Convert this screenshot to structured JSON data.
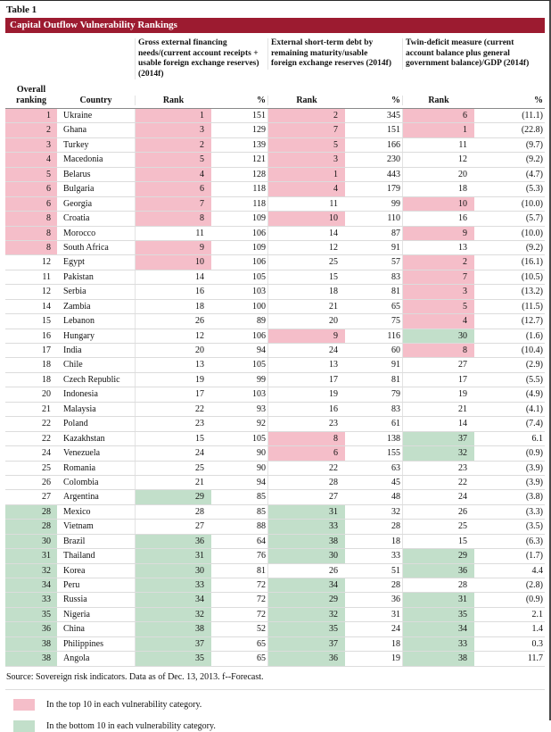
{
  "page": {
    "table_label": "Table 1",
    "title": "Capital Outflow Vulnerability Rankings",
    "source": "Source: Sovereign risk indicators. Data as of Dec. 13, 2013. f--Forecast.",
    "legend": [
      {
        "color": "#f5bec9",
        "label": "In the top 10 in each vulnerability category."
      },
      {
        "color": "#c2dfca",
        "label": "In the bottom 10 in each vulnerability category."
      }
    ]
  },
  "theme": {
    "header_red": "#9c1b30",
    "top10_pink": "#f5bec9",
    "bottom10_green": "#c2dfca"
  },
  "table": {
    "groups": [
      "Gross external financing needs/(current account receipts + usable foreign exchange reserves) (2014f)",
      "External short-term debt by remaining maturity/usable foreign exchange reserves (2014f)",
      "Twin-deficit measure (current account balance plus general government balance)/GDP (2014f)"
    ],
    "columns": {
      "overall": "Overall ranking",
      "country": "Country",
      "rank": "Rank",
      "pct": "%"
    },
    "rows": [
      {
        "overall": "1",
        "overall_hl": "pink",
        "country": "Ukraine",
        "g1_rank": "1",
        "g1_rank_hl": "pink",
        "g1_pct": "151",
        "g2_rank": "2",
        "g2_rank_hl": "pink",
        "g2_pct": "345",
        "g3_rank": "6",
        "g3_rank_hl": "pink",
        "g3_pct": "(11.1)"
      },
      {
        "overall": "2",
        "overall_hl": "pink",
        "country": "Ghana",
        "g1_rank": "3",
        "g1_rank_hl": "pink",
        "g1_pct": "129",
        "g2_rank": "7",
        "g2_rank_hl": "pink",
        "g2_pct": "151",
        "g3_rank": "1",
        "g3_rank_hl": "pink",
        "g3_pct": "(22.8)"
      },
      {
        "overall": "3",
        "overall_hl": "pink",
        "country": "Turkey",
        "g1_rank": "2",
        "g1_rank_hl": "pink",
        "g1_pct": "139",
        "g2_rank": "5",
        "g2_rank_hl": "pink",
        "g2_pct": "166",
        "g3_rank": "11",
        "g3_pct": "(9.7)"
      },
      {
        "overall": "4",
        "overall_hl": "pink",
        "country": "Macedonia",
        "g1_rank": "5",
        "g1_rank_hl": "pink",
        "g1_pct": "121",
        "g2_rank": "3",
        "g2_rank_hl": "pink",
        "g2_pct": "230",
        "g3_rank": "12",
        "g3_pct": "(9.2)"
      },
      {
        "overall": "5",
        "overall_hl": "pink",
        "country": "Belarus",
        "g1_rank": "4",
        "g1_rank_hl": "pink",
        "g1_pct": "128",
        "g2_rank": "1",
        "g2_rank_hl": "pink",
        "g2_pct": "443",
        "g3_rank": "20",
        "g3_pct": "(4.7)"
      },
      {
        "overall": "6",
        "overall_hl": "pink",
        "country": "Bulgaria",
        "g1_rank": "6",
        "g1_rank_hl": "pink",
        "g1_pct": "118",
        "g2_rank": "4",
        "g2_rank_hl": "pink",
        "g2_pct": "179",
        "g3_rank": "18",
        "g3_pct": "(5.3)"
      },
      {
        "overall": "6",
        "overall_hl": "pink",
        "country": "Georgia",
        "g1_rank": "7",
        "g1_rank_hl": "pink",
        "g1_pct": "118",
        "g2_rank": "11",
        "g2_pct": "99",
        "g3_rank": "10",
        "g3_rank_hl": "pink",
        "g3_pct": "(10.0)"
      },
      {
        "overall": "8",
        "overall_hl": "pink",
        "country": "Croatia",
        "g1_rank": "8",
        "g1_rank_hl": "pink",
        "g1_pct": "109",
        "g2_rank": "10",
        "g2_rank_hl": "pink",
        "g2_pct": "110",
        "g3_rank": "16",
        "g3_pct": "(5.7)"
      },
      {
        "overall": "8",
        "overall_hl": "pink",
        "country": "Morocco",
        "g1_rank": "11",
        "g1_pct": "106",
        "g2_rank": "14",
        "g2_pct": "87",
        "g3_rank": "9",
        "g3_rank_hl": "pink",
        "g3_pct": "(10.0)"
      },
      {
        "overall": "8",
        "overall_hl": "pink",
        "country": "South Africa",
        "g1_rank": "9",
        "g1_rank_hl": "pink",
        "g1_pct": "109",
        "g2_rank": "12",
        "g2_pct": "91",
        "g3_rank": "13",
        "g3_pct": "(9.2)"
      },
      {
        "overall": "12",
        "country": "Egypt",
        "g1_rank": "10",
        "g1_rank_hl": "pink",
        "g1_pct": "106",
        "g2_rank": "25",
        "g2_pct": "57",
        "g3_rank": "2",
        "g3_rank_hl": "pink",
        "g3_pct": "(16.1)"
      },
      {
        "overall": "11",
        "country": "Pakistan",
        "g1_rank": "14",
        "g1_pct": "105",
        "g2_rank": "15",
        "g2_pct": "83",
        "g3_rank": "7",
        "g3_rank_hl": "pink",
        "g3_pct": "(10.5)"
      },
      {
        "overall": "12",
        "country": "Serbia",
        "g1_rank": "16",
        "g1_pct": "103",
        "g2_rank": "18",
        "g2_pct": "81",
        "g3_rank": "3",
        "g3_rank_hl": "pink",
        "g3_pct": "(13.2)"
      },
      {
        "overall": "14",
        "country": "Zambia",
        "g1_rank": "18",
        "g1_pct": "100",
        "g2_rank": "21",
        "g2_pct": "65",
        "g3_rank": "5",
        "g3_rank_hl": "pink",
        "g3_pct": "(11.5)"
      },
      {
        "overall": "15",
        "country": "Lebanon",
        "g1_rank": "26",
        "g1_pct": "89",
        "g2_rank": "20",
        "g2_pct": "75",
        "g3_rank": "4",
        "g3_rank_hl": "pink",
        "g3_pct": "(12.7)"
      },
      {
        "overall": "16",
        "country": "Hungary",
        "g1_rank": "12",
        "g1_pct": "106",
        "g2_rank": "9",
        "g2_rank_hl": "pink",
        "g2_pct": "116",
        "g3_rank": "30",
        "g3_rank_hl": "green",
        "g3_pct": "(1.6)"
      },
      {
        "overall": "17",
        "country": "India",
        "g1_rank": "20",
        "g1_pct": "94",
        "g2_rank": "24",
        "g2_pct": "60",
        "g3_rank": "8",
        "g3_rank_hl": "pink",
        "g3_pct": "(10.4)"
      },
      {
        "overall": "18",
        "country": "Chile",
        "g1_rank": "13",
        "g1_pct": "105",
        "g2_rank": "13",
        "g2_pct": "91",
        "g3_rank": "27",
        "g3_pct": "(2.9)"
      },
      {
        "overall": "18",
        "country": "Czech Republic",
        "g1_rank": "19",
        "g1_pct": "99",
        "g2_rank": "17",
        "g2_pct": "81",
        "g3_rank": "17",
        "g3_pct": "(5.5)"
      },
      {
        "overall": "20",
        "country": "Indonesia",
        "g1_rank": "17",
        "g1_pct": "103",
        "g2_rank": "19",
        "g2_pct": "79",
        "g3_rank": "19",
        "g3_pct": "(4.9)"
      },
      {
        "overall": "21",
        "country": "Malaysia",
        "g1_rank": "22",
        "g1_pct": "93",
        "g2_rank": "16",
        "g2_pct": "83",
        "g3_rank": "21",
        "g3_pct": "(4.1)"
      },
      {
        "overall": "22",
        "country": "Poland",
        "g1_rank": "23",
        "g1_pct": "92",
        "g2_rank": "23",
        "g2_pct": "61",
        "g3_rank": "14",
        "g3_pct": "(7.4)"
      },
      {
        "overall": "22",
        "country": "Kazakhstan",
        "g1_rank": "15",
        "g1_pct": "105",
        "g2_rank": "8",
        "g2_rank_hl": "pink",
        "g2_pct": "138",
        "g3_rank": "37",
        "g3_rank_hl": "green",
        "g3_pct": "6.1"
      },
      {
        "overall": "24",
        "country": "Venezuela",
        "g1_rank": "24",
        "g1_pct": "90",
        "g2_rank": "6",
        "g2_rank_hl": "pink",
        "g2_pct": "155",
        "g3_rank": "32",
        "g3_rank_hl": "green",
        "g3_pct": "(0.9)"
      },
      {
        "overall": "25",
        "country": "Romania",
        "g1_rank": "25",
        "g1_pct": "90",
        "g2_rank": "22",
        "g2_pct": "63",
        "g3_rank": "23",
        "g3_pct": "(3.9)"
      },
      {
        "overall": "26",
        "country": "Colombia",
        "g1_rank": "21",
        "g1_pct": "94",
        "g2_rank": "28",
        "g2_pct": "45",
        "g3_rank": "22",
        "g3_pct": "(3.9)"
      },
      {
        "overall": "27",
        "country": "Argentina",
        "g1_rank": "29",
        "g1_rank_hl": "green",
        "g1_pct": "85",
        "g2_rank": "27",
        "g2_pct": "48",
        "g3_rank": "24",
        "g3_pct": "(3.8)"
      },
      {
        "overall": "28",
        "overall_hl": "green",
        "country": "Mexico",
        "g1_rank": "28",
        "g1_pct": "85",
        "g2_rank": "31",
        "g2_rank_hl": "green",
        "g2_pct": "32",
        "g3_rank": "26",
        "g3_pct": "(3.3)"
      },
      {
        "overall": "28",
        "overall_hl": "green",
        "country": "Vietnam",
        "g1_rank": "27",
        "g1_pct": "88",
        "g2_rank": "33",
        "g2_rank_hl": "green",
        "g2_pct": "28",
        "g3_rank": "25",
        "g3_pct": "(3.5)"
      },
      {
        "overall": "30",
        "overall_hl": "green",
        "country": "Brazil",
        "g1_rank": "36",
        "g1_rank_hl": "green",
        "g1_pct": "64",
        "g2_rank": "38",
        "g2_rank_hl": "green",
        "g2_pct": "18",
        "g3_rank": "15",
        "g3_pct": "(6.3)"
      },
      {
        "overall": "31",
        "overall_hl": "green",
        "country": "Thailand",
        "g1_rank": "31",
        "g1_rank_hl": "green",
        "g1_pct": "76",
        "g2_rank": "30",
        "g2_rank_hl": "green",
        "g2_pct": "33",
        "g3_rank": "29",
        "g3_rank_hl": "green",
        "g3_pct": "(1.7)"
      },
      {
        "overall": "32",
        "overall_hl": "green",
        "country": "Korea",
        "g1_rank": "30",
        "g1_rank_hl": "green",
        "g1_pct": "81",
        "g2_rank": "26",
        "g2_pct": "51",
        "g3_rank": "36",
        "g3_rank_hl": "green",
        "g3_pct": "4.4"
      },
      {
        "overall": "34",
        "overall_hl": "green",
        "country": "Peru",
        "g1_rank": "33",
        "g1_rank_hl": "green",
        "g1_pct": "72",
        "g2_rank": "34",
        "g2_rank_hl": "green",
        "g2_pct": "28",
        "g3_rank": "28",
        "g3_pct": "(2.8)"
      },
      {
        "overall": "33",
        "overall_hl": "green",
        "country": "Russia",
        "g1_rank": "34",
        "g1_rank_hl": "green",
        "g1_pct": "72",
        "g2_rank": "29",
        "g2_rank_hl": "green",
        "g2_pct": "36",
        "g3_rank": "31",
        "g3_rank_hl": "green",
        "g3_pct": "(0.9)"
      },
      {
        "overall": "35",
        "overall_hl": "green",
        "country": "Nigeria",
        "g1_rank": "32",
        "g1_rank_hl": "green",
        "g1_pct": "72",
        "g2_rank": "32",
        "g2_rank_hl": "green",
        "g2_pct": "31",
        "g3_rank": "35",
        "g3_rank_hl": "green",
        "g3_pct": "2.1"
      },
      {
        "overall": "36",
        "overall_hl": "green",
        "country": "China",
        "g1_rank": "38",
        "g1_rank_hl": "green",
        "g1_pct": "52",
        "g2_rank": "35",
        "g2_rank_hl": "green",
        "g2_pct": "24",
        "g3_rank": "34",
        "g3_rank_hl": "green",
        "g3_pct": "1.4"
      },
      {
        "overall": "38",
        "overall_hl": "green",
        "country": "Philippines",
        "g1_rank": "37",
        "g1_rank_hl": "green",
        "g1_pct": "65",
        "g2_rank": "37",
        "g2_rank_hl": "green",
        "g2_pct": "18",
        "g3_rank": "33",
        "g3_rank_hl": "green",
        "g3_pct": "0.3"
      },
      {
        "overall": "38",
        "overall_hl": "green",
        "country": "Angola",
        "g1_rank": "35",
        "g1_rank_hl": "green",
        "g1_pct": "65",
        "g2_rank": "36",
        "g2_rank_hl": "green",
        "g2_pct": "19",
        "g3_rank": "38",
        "g3_rank_hl": "green",
        "g3_pct": "11.7"
      }
    ]
  }
}
